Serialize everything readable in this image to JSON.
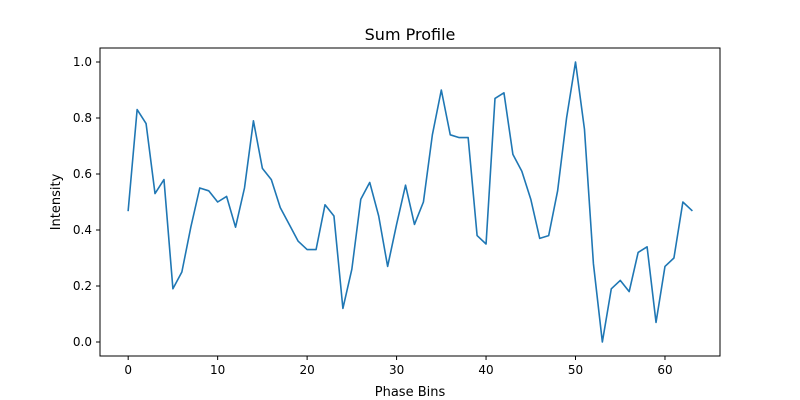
{
  "chart_data": {
    "type": "line",
    "title": "Sum Profile",
    "xlabel": "Phase Bins",
    "ylabel": "Intensity",
    "xlim": [
      -3.15,
      66.15
    ],
    "ylim": [
      -0.05,
      1.05
    ],
    "xticks": [
      0,
      10,
      20,
      30,
      40,
      50,
      60
    ],
    "yticks": [
      0.0,
      0.2,
      0.4,
      0.6,
      0.8,
      1.0
    ],
    "xtick_labels": [
      "0",
      "10",
      "20",
      "30",
      "40",
      "50",
      "60"
    ],
    "ytick_labels": [
      "0.0",
      "0.2",
      "0.4",
      "0.6",
      "0.8",
      "1.0"
    ],
    "grid": false,
    "legend": false,
    "series": [
      {
        "color": "#1f77b4",
        "x": [
          0,
          1,
          2,
          3,
          4,
          5,
          6,
          7,
          8,
          9,
          10,
          11,
          12,
          13,
          14,
          15,
          16,
          17,
          18,
          19,
          20,
          21,
          22,
          23,
          24,
          25,
          26,
          27,
          28,
          29,
          30,
          31,
          32,
          33,
          34,
          35,
          36,
          37,
          38,
          39,
          40,
          41,
          42,
          43,
          44,
          45,
          46,
          47,
          48,
          49,
          50,
          51,
          52,
          53,
          54,
          55,
          56,
          57,
          58,
          59,
          60,
          61,
          62,
          63
        ],
        "values": [
          0.47,
          0.83,
          0.78,
          0.53,
          0.58,
          0.19,
          0.25,
          0.41,
          0.55,
          0.54,
          0.5,
          0.52,
          0.41,
          0.55,
          0.79,
          0.62,
          0.58,
          0.48,
          0.42,
          0.36,
          0.33,
          0.33,
          0.49,
          0.45,
          0.12,
          0.26,
          0.51,
          0.57,
          0.45,
          0.27,
          0.42,
          0.56,
          0.42,
          0.5,
          0.74,
          0.9,
          0.74,
          0.73,
          0.73,
          0.38,
          0.35,
          0.87,
          0.89,
          0.67,
          0.61,
          0.51,
          0.37,
          0.38,
          0.54,
          0.8,
          1.0,
          0.76,
          0.28,
          0.0,
          0.19,
          0.22,
          0.18,
          0.32,
          0.34,
          0.07,
          0.27,
          0.3,
          0.5,
          0.47
        ]
      }
    ]
  }
}
